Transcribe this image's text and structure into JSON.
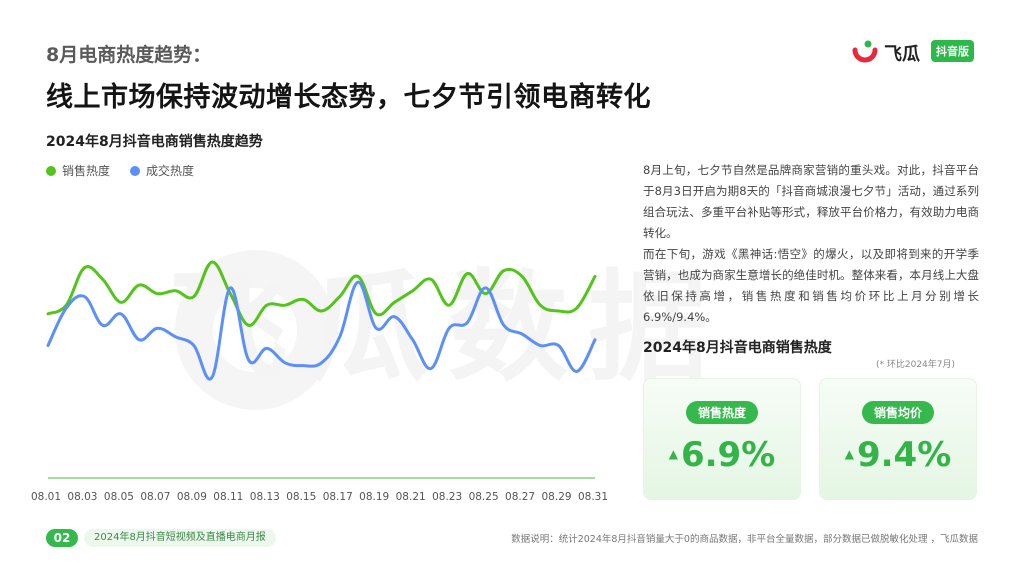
{
  "header": {
    "eyebrow": "8月电商热度趋势：",
    "headline": "线上市场保持波动增长态势，七夕节引领电商转化"
  },
  "logo": {
    "name": "飞瓜",
    "badge": "抖音版"
  },
  "watermark": "飞瓜数据",
  "chart_data": {
    "type": "line",
    "title": "2024年8月抖音电商销售热度趋势",
    "categories": [
      "08.01",
      "08.02",
      "08.03",
      "08.04",
      "08.05",
      "08.06",
      "08.07",
      "08.08",
      "08.09",
      "08.10",
      "08.11",
      "08.12",
      "08.13",
      "08.14",
      "08.15",
      "08.16",
      "08.17",
      "08.18",
      "08.19",
      "08.20",
      "08.21",
      "08.22",
      "08.23",
      "08.24",
      "08.25",
      "08.26",
      "08.27",
      "08.28",
      "08.29",
      "08.30",
      "08.31"
    ],
    "tick_labels": [
      "08.01",
      "08.03",
      "08.05",
      "08.07",
      "08.09",
      "08.11",
      "08.13",
      "08.15",
      "08.17",
      "08.19",
      "08.21",
      "08.23",
      "08.25",
      "08.27",
      "08.29",
      "08.31"
    ],
    "ylim": [
      0,
      100
    ],
    "grid": false,
    "legend_position": "top-left",
    "series": [
      {
        "name": "销售热度",
        "color": "#52c41a",
        "values": [
          57,
          60,
          73,
          69,
          61,
          67,
          64,
          65,
          63,
          75,
          64,
          53,
          60,
          60,
          62,
          58,
          63,
          70,
          57,
          61,
          65,
          69,
          60,
          71,
          64,
          72,
          70,
          60,
          58,
          59,
          70
        ]
      },
      {
        "name": "成交热度",
        "color": "#5b8ff9",
        "values": [
          46,
          59,
          63,
          53,
          57,
          48,
          52,
          49,
          46,
          35,
          66,
          41,
          45,
          40,
          39,
          40,
          49,
          68,
          52,
          56,
          48,
          38,
          52,
          54,
          66,
          53,
          50,
          46,
          46,
          37,
          48
        ]
      }
    ]
  },
  "description": {
    "p1": "8月上旬，七夕节自然是品牌商家营销的重头戏。对此，抖音平台于8月3日开启为期8天的「抖音商城浪漫七夕节」活动，通过系列组合玩法、多重平台补贴等形式，释放平台价格力，有效助力电商转化。",
    "p2": "而在下旬，游戏《黑神话:悟空》的爆火，以及即将到来的开学季营销，也成为商家生意增长的绝佳时机。整体来看，本月线上大盘依旧保持高增，销售热度和销售均价环比上月分别增长6.9%/9.4%。"
  },
  "kpi": {
    "title": "2024年8月抖音电商销售热度",
    "note": "(* 环比2024年7月)",
    "cards": [
      {
        "label": "销售热度",
        "value": "6.9%",
        "arrow": "▲"
      },
      {
        "label": "销售均价",
        "value": "9.4%",
        "arrow": "▲"
      }
    ]
  },
  "footer": {
    "page_num": "02",
    "report": "2024年8月抖音短视频及直播电商月报",
    "source": "数据说明：统计2024年8月抖音销量大于0的商品数据，非平台全量数据，部分数据已做脱敏化处理 ，飞瓜数据"
  }
}
